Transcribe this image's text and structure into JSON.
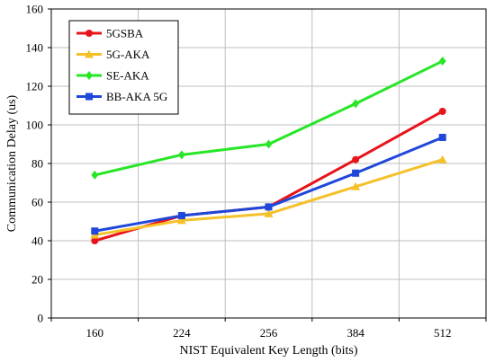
{
  "chart_data": {
    "type": "line",
    "title": "",
    "xlabel": "NIST Equivalent Key Length (bits)",
    "ylabel": "Communication Delay (us)",
    "categories": [
      "160",
      "224",
      "256",
      "384",
      "512"
    ],
    "ylim": [
      0,
      160
    ],
    "yticks": [
      "0",
      "20",
      "40",
      "60",
      "80",
      "100",
      "120",
      "140",
      "160"
    ],
    "grid": true,
    "legend_position": "top-left",
    "series": [
      {
        "name": "5GSBA",
        "color": "#e8141b",
        "marker": "circle",
        "values": [
          40,
          53,
          57.5,
          82,
          107
        ]
      },
      {
        "name": "5G-AKA",
        "color": "#f5c12a",
        "marker": "triangle",
        "values": [
          43,
          50.5,
          54,
          68,
          82
        ]
      },
      {
        "name": "SE-AKA",
        "color": "#27e627",
        "marker": "diamond",
        "values": [
          74,
          84.5,
          90,
          111,
          133
        ]
      },
      {
        "name": "BB-AKA 5G",
        "color": "#1f47d9",
        "marker": "square",
        "values": [
          45,
          53,
          57.5,
          75,
          93.5
        ]
      }
    ]
  }
}
